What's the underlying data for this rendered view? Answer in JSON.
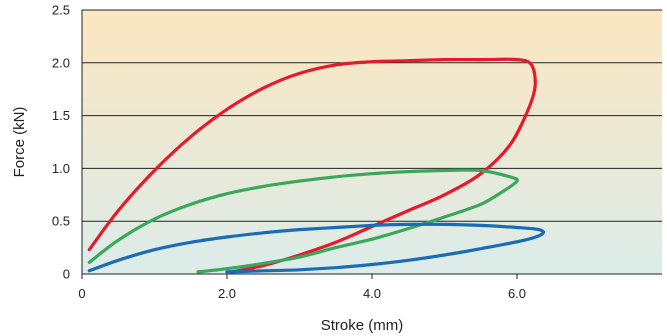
{
  "chart_data": {
    "type": "line",
    "title": "",
    "xlabel": "Stroke (mm)",
    "ylabel": "Force (kN)",
    "xlim": [
      0,
      8
    ],
    "ylim": [
      0,
      2.5
    ],
    "x_ticks": [
      0,
      2,
      4,
      6
    ],
    "x_tick_labels": [
      "0",
      "2.0",
      "4.0",
      "6.0"
    ],
    "y_ticks": [
      0,
      0.5,
      1.0,
      1.5,
      2.0,
      2.5
    ],
    "y_tick_labels": [
      "0",
      "0.5",
      "1.0",
      "1.5",
      "2.0",
      "2.5"
    ],
    "grid": "horizontal",
    "legend": "none",
    "background_gradient": {
      "top": "#fbe6c0",
      "bottom": "#dcecea"
    },
    "series": [
      {
        "color": "#e8192c",
        "points": [
          [
            0.1,
            0.23
          ],
          [
            0.5,
            0.6
          ],
          [
            1.0,
            0.98
          ],
          [
            1.5,
            1.3
          ],
          [
            2.0,
            1.56
          ],
          [
            2.5,
            1.76
          ],
          [
            3.0,
            1.9
          ],
          [
            3.5,
            1.98
          ],
          [
            4.0,
            2.01
          ],
          [
            4.5,
            2.02
          ],
          [
            5.0,
            2.03
          ],
          [
            5.5,
            2.03
          ],
          [
            6.0,
            2.03
          ],
          [
            6.2,
            1.98
          ],
          [
            6.25,
            1.78
          ],
          [
            6.15,
            1.55
          ],
          [
            5.9,
            1.22
          ],
          [
            5.5,
            0.95
          ],
          [
            5.0,
            0.75
          ],
          [
            4.5,
            0.6
          ],
          [
            4.0,
            0.45
          ],
          [
            3.5,
            0.3
          ],
          [
            3.0,
            0.18
          ],
          [
            2.5,
            0.08
          ],
          [
            2.0,
            0.01
          ]
        ]
      },
      {
        "color": "#3aa85a",
        "points": [
          [
            0.1,
            0.11
          ],
          [
            0.5,
            0.32
          ],
          [
            1.0,
            0.52
          ],
          [
            1.5,
            0.66
          ],
          [
            2.0,
            0.76
          ],
          [
            2.5,
            0.83
          ],
          [
            3.0,
            0.88
          ],
          [
            3.5,
            0.92
          ],
          [
            4.0,
            0.95
          ],
          [
            4.5,
            0.97
          ],
          [
            5.0,
            0.98
          ],
          [
            5.5,
            0.98
          ],
          [
            5.9,
            0.92
          ],
          [
            6.0,
            0.88
          ],
          [
            5.8,
            0.78
          ],
          [
            5.5,
            0.66
          ],
          [
            5.0,
            0.54
          ],
          [
            4.5,
            0.43
          ],
          [
            4.0,
            0.33
          ],
          [
            3.5,
            0.25
          ],
          [
            3.0,
            0.16
          ],
          [
            2.5,
            0.1
          ],
          [
            2.0,
            0.05
          ],
          [
            1.6,
            0.02
          ]
        ]
      },
      {
        "color": "#1a6db5",
        "points": [
          [
            0.1,
            0.03
          ],
          [
            0.5,
            0.13
          ],
          [
            1.0,
            0.23
          ],
          [
            1.5,
            0.3
          ],
          [
            2.0,
            0.35
          ],
          [
            2.5,
            0.39
          ],
          [
            3.0,
            0.42
          ],
          [
            3.5,
            0.44
          ],
          [
            4.0,
            0.46
          ],
          [
            4.5,
            0.47
          ],
          [
            5.0,
            0.47
          ],
          [
            5.5,
            0.46
          ],
          [
            6.0,
            0.44
          ],
          [
            6.3,
            0.42
          ],
          [
            6.35,
            0.38
          ],
          [
            6.1,
            0.32
          ],
          [
            5.5,
            0.24
          ],
          [
            5.0,
            0.18
          ],
          [
            4.5,
            0.13
          ],
          [
            4.0,
            0.09
          ],
          [
            3.5,
            0.06
          ],
          [
            3.0,
            0.04
          ],
          [
            2.5,
            0.03
          ],
          [
            2.0,
            0.02
          ]
        ]
      }
    ]
  }
}
